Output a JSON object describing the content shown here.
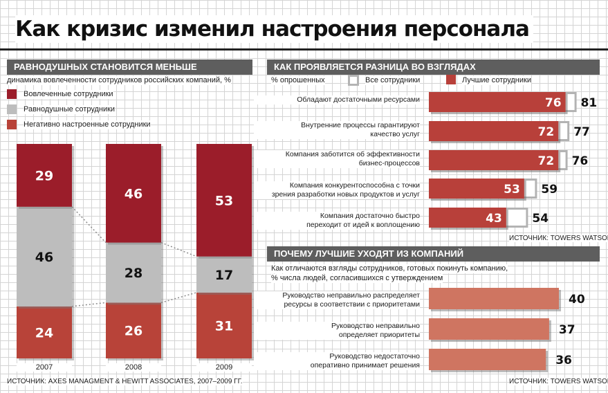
{
  "title": "Как кризис изменил настроения персонала",
  "colors": {
    "engaged": "#9b1d2a",
    "indifferent": "#bdbdbd",
    "negative": "#b84339",
    "best": "#b8403a",
    "all_outline": "#b3b3b3",
    "leave": "#cf7561",
    "header_bg": "#5e5e5e"
  },
  "left": {
    "header": "РАВНОДУШНЫХ СТАНОВИТСЯ МЕНЬШЕ",
    "subtitle": "динамика вовлеченности сотрудников российских компаний, %",
    "legend": [
      {
        "label": "Вовлеченные сотрудники",
        "color": "#9b1d2a"
      },
      {
        "label": "Равнодушные сотрудники",
        "color": "#bdbdbd"
      },
      {
        "label": "Негативно настроенные сотрудники",
        "color": "#b84339"
      }
    ],
    "source": "ИСТОЧНИК: AXES MANAGMENT & HEWITT ASSOCIATES, 2007–2009 ГГ."
  },
  "right_top": {
    "header": "КАК ПРОЯВЛЯЕТСЯ РАЗНИЦА ВО ВЗГЛЯДАХ",
    "unit": "% опрошенных",
    "legend_all": "Все сотрудники",
    "legend_best": "Лучшие сотрудники",
    "source": "ИСТОЧНИК: TOWERS WATSON"
  },
  "right_bottom": {
    "header": "ПОЧЕМУ ЛУЧШИЕ УХОДЯТ ИЗ КОМПАНИЙ",
    "subtitle_1": "Как отличаются взгляды сотрудников, готовых покинуть компанию,",
    "subtitle_2": "% числа людей, согласившихся с утверждением",
    "source": "ИСТОЧНИК: TOWERS WATSON"
  },
  "chart_data": [
    {
      "type": "bar",
      "stacked": true,
      "title": "РАВНОДУШНЫХ СТАНОВИТСЯ МЕНЬШЕ",
      "categories": [
        "2007",
        "2008",
        "2009"
      ],
      "series": [
        {
          "name": "Негативно настроенные сотрудники",
          "values": [
            24,
            26,
            31
          ]
        },
        {
          "name": "Равнодушные сотрудники",
          "values": [
            46,
            28,
            17
          ]
        },
        {
          "name": "Вовлеченные сотрудники",
          "values": [
            29,
            46,
            53
          ]
        }
      ]
    },
    {
      "type": "bar",
      "orientation": "horizontal",
      "title": "КАК ПРОЯВЛЯЕТСЯ РАЗНИЦА ВО ВЗГЛЯДАХ",
      "categories": [
        [
          "Обладают достаточными ресурсами"
        ],
        [
          "Внутренние процессы гарантируют",
          "качество услуг"
        ],
        [
          "Компания заботится об эффективности",
          "бизнес-процессов"
        ],
        [
          "Компания конкурентоспособна с точки",
          "зрения разработки новых продуктов и услуг"
        ],
        [
          "Компания достаточно быстро",
          "переходит от идей к воплощению"
        ]
      ],
      "series": [
        {
          "name": "Лучшие сотрудники",
          "values": [
            76,
            72,
            72,
            53,
            43
          ]
        },
        {
          "name": "Все сотрудники",
          "values": [
            81,
            77,
            76,
            59,
            54
          ]
        }
      ]
    },
    {
      "type": "bar",
      "orientation": "horizontal",
      "title": "ПОЧЕМУ ЛУЧШИЕ УХОДЯТ ИЗ КОМПАНИЙ",
      "categories": [
        [
          "Руководство неправильно распределяет",
          "ресурсы в соответствии с приоритетами"
        ],
        [
          "Руководство неправильно",
          "определяет приоритеты"
        ],
        [
          "Руководство недостаточно",
          "оперативно принимает решения"
        ]
      ],
      "series": [
        {
          "values": [
            40,
            37,
            36
          ]
        }
      ]
    }
  ]
}
